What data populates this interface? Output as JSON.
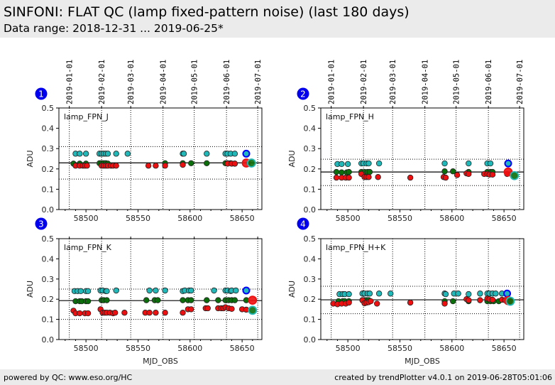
{
  "header": {
    "title": "SINFONI: FLAT QC (lamp fixed-pattern noise) (last 180 days)",
    "subtitle": "Data range: 2018-12-31 ... 2019-06-25*"
  },
  "footer": {
    "left": "powered by QC: www.eso.org/HC",
    "right": "created by trendPlotter v4.0.1 on 2019-06-28T05:01:06"
  },
  "colors": {
    "cyan": "#20b8b8",
    "green": "#0a6e0a",
    "red": "#ee1010",
    "badge": "#0000ee",
    "latest_outline": "#0000ff"
  },
  "chart_data": [
    {
      "type": "scatter",
      "panel_number": "1",
      "title": "lamp_FPN_J",
      "xlabel": "",
      "ylabel": "ADU",
      "xlim": [
        58474,
        58669
      ],
      "ylim": [
        0.0,
        0.5
      ],
      "xticks": [
        58500,
        58550,
        58600,
        58650
      ],
      "yticks": [
        "0.0",
        "0.1",
        "0.2",
        "0.3",
        "0.4",
        "0.5"
      ],
      "top_date_ticks": [
        {
          "label": "2019-01-01",
          "mjd": 58484
        },
        {
          "label": "2019-02-01",
          "mjd": 58515
        },
        {
          "label": "2019-03-01",
          "mjd": 58543
        },
        {
          "label": "2019-04-01",
          "mjd": 58574
        },
        {
          "label": "2019-05-01",
          "mjd": 58604
        },
        {
          "label": "2019-06-01",
          "mjd": 58635
        },
        {
          "label": "2019-07-01",
          "mjd": 58665
        }
      ],
      "reference_line": 0.23,
      "threshold_lines": [
        0.15,
        0.31
      ],
      "series": [
        {
          "name": "cyan",
          "color": "cyan",
          "x": [
            58490,
            58494,
            58500,
            58513,
            58515,
            58517,
            58519,
            58521,
            58529,
            58540,
            58593,
            58594,
            58616,
            58634,
            58636,
            58639,
            58643
          ],
          "y": [
            0.275,
            0.275,
            0.275,
            0.275,
            0.275,
            0.275,
            0.275,
            0.275,
            0.275,
            0.275,
            0.275,
            0.275,
            0.275,
            0.275,
            0.275,
            0.275,
            0.275
          ]
        },
        {
          "name": "green",
          "color": "green",
          "x": [
            58488,
            58494,
            58500,
            58513,
            58515,
            58517,
            58519,
            58521,
            58576,
            58593,
            58601,
            58616,
            58634,
            58636,
            58639,
            58643
          ],
          "y": [
            0.226,
            0.226,
            0.226,
            0.228,
            0.228,
            0.228,
            0.228,
            0.226,
            0.228,
            0.228,
            0.228,
            0.228,
            0.228,
            0.228,
            0.228,
            0.226
          ]
        },
        {
          "name": "red",
          "color": "red",
          "x": [
            58490,
            58494,
            58497,
            58499,
            58501,
            58515,
            58517,
            58519,
            58521,
            58524,
            58526,
            58529,
            58560,
            58567,
            58576,
            58593,
            58636,
            58640,
            58643
          ],
          "y": [
            0.216,
            0.216,
            0.216,
            0.216,
            0.216,
            0.216,
            0.216,
            0.216,
            0.216,
            0.216,
            0.216,
            0.216,
            0.216,
            0.216,
            0.216,
            0.22,
            0.226,
            0.226,
            0.226
          ]
        }
      ],
      "latest": [
        {
          "color": "cyan",
          "x": 58654,
          "y": 0.275
        },
        {
          "color": "red",
          "x": 58654,
          "y": 0.229
        },
        {
          "color": "green",
          "x": 58659,
          "y": 0.229
        }
      ]
    },
    {
      "type": "scatter",
      "panel_number": "2",
      "title": "lamp_FPN_H",
      "xlabel": "",
      "ylabel": "ADU",
      "xlim": [
        58474,
        58669
      ],
      "ylim": [
        0.0,
        0.5
      ],
      "xticks": [
        58500,
        58550,
        58600,
        58650
      ],
      "yticks": [
        "0.0",
        "0.1",
        "0.2",
        "0.3",
        "0.4",
        "0.5"
      ],
      "top_date_ticks": [
        {
          "label": "2019-01-01",
          "mjd": 58484
        },
        {
          "label": "2019-02-01",
          "mjd": 58515
        },
        {
          "label": "2019-03-01",
          "mjd": 58543
        },
        {
          "label": "2019-04-01",
          "mjd": 58574
        },
        {
          "label": "2019-05-01",
          "mjd": 58604
        },
        {
          "label": "2019-06-01",
          "mjd": 58635
        },
        {
          "label": "2019-07-01",
          "mjd": 58665
        }
      ],
      "reference_line": 0.185,
      "threshold_lines": [
        0.118,
        0.248
      ],
      "series": [
        {
          "name": "cyan",
          "color": "cyan",
          "x": [
            58490,
            58494,
            58500,
            58513,
            58515,
            58518,
            58520,
            58530,
            58593,
            58616,
            58634,
            58637
          ],
          "y": [
            0.224,
            0.224,
            0.224,
            0.227,
            0.227,
            0.227,
            0.227,
            0.227,
            0.227,
            0.227,
            0.227,
            0.227
          ]
        },
        {
          "name": "green",
          "color": "green",
          "x": [
            58489,
            58494,
            58499,
            58501,
            58513,
            58516,
            58519,
            58521,
            58593,
            58601,
            58616,
            58634,
            58637,
            58639
          ],
          "y": [
            0.185,
            0.183,
            0.183,
            0.185,
            0.185,
            0.185,
            0.185,
            0.185,
            0.188,
            0.188,
            0.185,
            0.185,
            0.185,
            0.185
          ]
        },
        {
          "name": "red",
          "color": "red",
          "x": [
            58489,
            58494,
            58498,
            58501,
            58513,
            58516,
            58518,
            58520,
            58529,
            58560,
            58592,
            58594,
            58605,
            58614,
            58616,
            58631,
            58634,
            58636,
            58639,
            58653
          ],
          "y": [
            0.157,
            0.157,
            0.157,
            0.157,
            0.175,
            0.16,
            0.16,
            0.16,
            0.16,
            0.157,
            0.16,
            0.157,
            0.17,
            0.178,
            0.175,
            0.175,
            0.175,
            0.172,
            0.172,
            0.175
          ]
        }
      ],
      "latest": [
        {
          "color": "cyan",
          "x": 58654,
          "y": 0.227
        },
        {
          "color": "red",
          "x": 58654,
          "y": 0.185
        },
        {
          "color": "green",
          "x": 58660,
          "y": 0.167
        }
      ]
    },
    {
      "type": "scatter",
      "panel_number": "3",
      "title": "lamp_FPN_K",
      "xlabel": "MJD_OBS",
      "ylabel": "ADU",
      "xlim": [
        58474,
        58669
      ],
      "ylim": [
        0.0,
        0.5
      ],
      "xticks": [
        58500,
        58550,
        58600,
        58650
      ],
      "yticks": [
        "0.0",
        "0.1",
        "0.2",
        "0.3",
        "0.4",
        "0.5"
      ],
      "top_date_ticks": [
        {
          "label": "2019-01-01",
          "mjd": 58484
        },
        {
          "label": "2019-02-01",
          "mjd": 58515
        },
        {
          "label": "2019-03-01",
          "mjd": 58543
        },
        {
          "label": "2019-04-01",
          "mjd": 58574
        },
        {
          "label": "2019-05-01",
          "mjd": 58604
        },
        {
          "label": "2019-06-01",
          "mjd": 58635
        },
        {
          "label": "2019-07-01",
          "mjd": 58665
        }
      ],
      "reference_line": 0.193,
      "threshold_lines": [
        0.1,
        0.25
      ],
      "series": [
        {
          "name": "cyan",
          "color": "cyan",
          "x": [
            58489,
            58492,
            58495,
            58500,
            58502,
            58514,
            58516,
            58519,
            58520,
            58529,
            58561,
            58567,
            58576,
            58593,
            58595,
            58599,
            58601,
            58623,
            58634,
            58636,
            58639,
            58640,
            58644
          ],
          "y": [
            0.24,
            0.24,
            0.24,
            0.24,
            0.24,
            0.243,
            0.243,
            0.24,
            0.24,
            0.243,
            0.243,
            0.243,
            0.243,
            0.24,
            0.243,
            0.243,
            0.243,
            0.243,
            0.243,
            0.243,
            0.24,
            0.243,
            0.243
          ],
          "note": ""
        },
        {
          "name": "green",
          "color": "green",
          "x": [
            58490,
            58494,
            58496,
            58500,
            58502,
            58515,
            58517,
            58520,
            58558,
            58566,
            58569,
            58593,
            58598,
            58601,
            58616,
            58627,
            58634,
            58637,
            58640,
            58643,
            58654
          ],
          "y": [
            0.19,
            0.19,
            0.19,
            0.19,
            0.19,
            0.195,
            0.195,
            0.195,
            0.195,
            0.195,
            0.195,
            0.195,
            0.195,
            0.195,
            0.195,
            0.195,
            0.195,
            0.195,
            0.195,
            0.195,
            0.195
          ]
        },
        {
          "name": "red",
          "color": "red",
          "x": [
            58488,
            58490,
            58494,
            58499,
            58502,
            58514,
            58516,
            58518,
            58520,
            58523,
            58526,
            58528,
            58537,
            58557,
            58561,
            58567,
            58576,
            58593,
            58598,
            58601,
            58615,
            58617,
            58627,
            58630,
            58632,
            58634,
            58637,
            58640,
            58650,
            58654
          ],
          "y": [
            0.143,
            0.13,
            0.13,
            0.13,
            0.13,
            0.15,
            0.133,
            0.133,
            0.133,
            0.133,
            0.13,
            0.133,
            0.133,
            0.133,
            0.133,
            0.133,
            0.133,
            0.133,
            0.15,
            0.15,
            0.155,
            0.155,
            0.155,
            0.155,
            0.155,
            0.16,
            0.155,
            0.152,
            0.15,
            0.148
          ]
        }
      ],
      "latest": [
        {
          "color": "cyan",
          "x": 58654,
          "y": 0.243
        },
        {
          "color": "red",
          "x": 58660,
          "y": 0.195
        },
        {
          "color": "green",
          "x": 58660,
          "y": 0.145
        }
      ]
    },
    {
      "type": "scatter",
      "panel_number": "4",
      "title": "lamp_FPN_H+K",
      "xlabel": "MJD_OBS",
      "ylabel": "ADU",
      "xlim": [
        58474,
        58669
      ],
      "ylim": [
        0.0,
        0.5
      ],
      "xticks": [
        58500,
        58550,
        58600,
        58650
      ],
      "yticks": [
        "0.0",
        "0.1",
        "0.2",
        "0.3",
        "0.4",
        "0.5"
      ],
      "top_date_ticks": [],
      "reference_line": 0.197,
      "threshold_lines": [
        0.128,
        0.264
      ],
      "series": [
        {
          "name": "cyan",
          "color": "cyan",
          "x": [
            58492,
            58495,
            58497,
            58501,
            58514,
            58516,
            58519,
            58521,
            58530,
            58541,
            58593,
            58594,
            58602,
            58606,
            58616,
            58627,
            58634,
            58636,
            58639,
            58642,
            58648
          ],
          "y": [
            0.225,
            0.225,
            0.225,
            0.225,
            0.228,
            0.228,
            0.228,
            0.228,
            0.228,
            0.228,
            0.228,
            0.225,
            0.228,
            0.228,
            0.225,
            0.228,
            0.228,
            0.228,
            0.228,
            0.228,
            0.228
          ]
        },
        {
          "name": "green",
          "color": "green",
          "x": [
            58491,
            58495,
            58497,
            58501,
            58514,
            58516,
            58518,
            58520,
            58593,
            58601,
            58616,
            58634,
            58637,
            58640,
            58645
          ],
          "y": [
            0.19,
            0.19,
            0.19,
            0.19,
            0.195,
            0.195,
            0.195,
            0.195,
            0.19,
            0.19,
            0.19,
            0.19,
            0.19,
            0.19,
            0.19
          ]
        },
        {
          "name": "red",
          "color": "red",
          "x": [
            58486,
            58490,
            58494,
            58498,
            58501,
            58514,
            58516,
            58518,
            58520,
            58522,
            58528,
            58560,
            58593,
            58614,
            58616,
            58627,
            58634,
            58636,
            58639,
            58648,
            58651,
            58653,
            58655
          ],
          "y": [
            0.178,
            0.175,
            0.178,
            0.178,
            0.183,
            0.195,
            0.18,
            0.183,
            0.185,
            0.19,
            0.178,
            0.183,
            0.178,
            0.2,
            0.195,
            0.195,
            0.203,
            0.2,
            0.197,
            0.197,
            0.195,
            0.195,
            0.193
          ]
        }
      ],
      "latest": [
        {
          "color": "cyan",
          "x": 58653,
          "y": 0.228
        },
        {
          "color": "red",
          "x": 58654,
          "y": 0.193
        },
        {
          "color": "green",
          "x": 58656,
          "y": 0.19
        }
      ]
    }
  ]
}
